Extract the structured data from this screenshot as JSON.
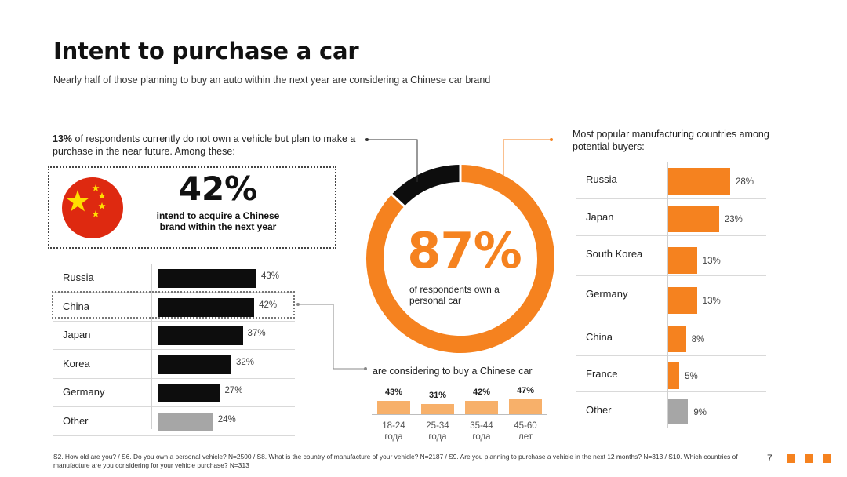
{
  "title": "Intent to purchase a car",
  "subtitle": "Nearly half of those planning to buy an auto within the next year are considering a Chinese car brand",
  "intro": {
    "bold": "13%",
    "text": " of respondents currently do not own a vehicle but plan to make a purchase in the near future. Among these:"
  },
  "highlight": {
    "percent": "42%",
    "note": "intend to acquire a Chinese brand within the next year"
  },
  "donut_center": {
    "percent": "87%",
    "note": "of respondents own a personal car"
  },
  "age_section_title": "are considering to buy a Chinese car",
  "right_title": "Most popular manufacturing countries among potential buyers:",
  "footnote": "S2. How old are you? / S6. Do you own a personal vehicle? N=2500 / S8. What is the country of manufacture of your vehicle? N=2187 / S9. Are you planning to purchase a vehicle in the next 12 months? N=313 / S10. Which countries of manufacture are you considering for your vehicle purchase? N=313",
  "page_number": "7",
  "colors": {
    "accent": "#f5821f",
    "dark": "#0d0d0d",
    "gray": "#a6a6a6",
    "light_orange": "#f7b06a",
    "flag_red": "#de2910",
    "flag_yellow": "#ffde00"
  },
  "chart_data": [
    {
      "type": "bar",
      "orientation": "horizontal",
      "categories": [
        "Russia",
        "China",
        "Japan",
        "Korea",
        "Germany",
        "Other"
      ],
      "values": [
        43,
        42,
        37,
        32,
        27,
        24
      ],
      "labels": [
        "43%",
        "42%",
        "37%",
        "32%",
        "27%",
        "24%"
      ]
    },
    {
      "type": "pie",
      "donut": true,
      "values": [
        87,
        13
      ],
      "center_label": "87%"
    },
    {
      "type": "bar",
      "title": "are considering to buy a Chinese car",
      "categories": [
        "18-24 года",
        "25-34 года",
        "35-44 года",
        "45-60 лет"
      ],
      "category_lines": [
        [
          "18-24",
          "года"
        ],
        [
          "25-34",
          "года"
        ],
        [
          "35-44",
          "года"
        ],
        [
          "45-60",
          "лет"
        ]
      ],
      "values": [
        43,
        31,
        42,
        47
      ],
      "labels": [
        "43%",
        "31%",
        "42%",
        "47%"
      ]
    },
    {
      "type": "bar",
      "orientation": "horizontal",
      "title": "Most popular manufacturing countries among potential buyers:",
      "categories": [
        "Russia",
        "Japan",
        "South Korea",
        "Germany",
        "China",
        "France",
        "Other"
      ],
      "values": [
        28,
        23,
        13,
        13,
        8,
        5,
        9
      ],
      "labels": [
        "28%",
        "23%",
        "13%",
        "13%",
        "8%",
        "5%",
        "9%"
      ]
    }
  ]
}
